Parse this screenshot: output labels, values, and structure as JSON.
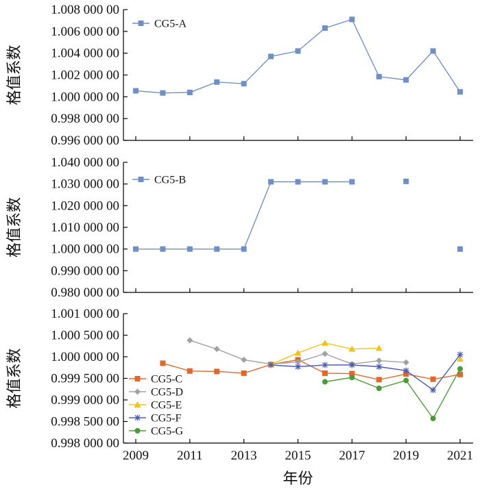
{
  "chart_data": [
    {
      "type": "line",
      "panel": "top",
      "ylabel": "格值系数",
      "ylim": [
        0.996,
        1.008
      ],
      "yticks": [
        0.996,
        0.998,
        1.0,
        1.002,
        1.004,
        1.006,
        1.008
      ],
      "ytick_labels": [
        "0.996 000 00",
        "0.998 000 00",
        "1.000 000 00",
        "1.002 000 00",
        "1.004 000 00",
        "1.006 000 00",
        "1.008 000 00"
      ],
      "legend_position": "top-left",
      "series": [
        {
          "name": "CG5-A",
          "color": "#6e8fc8",
          "marker": "square",
          "x": [
            2009,
            2010,
            2011,
            2012,
            2013,
            2014,
            2015,
            2016,
            2017,
            2018,
            2019,
            2020,
            2021
          ],
          "values": [
            1.00055,
            1.00035,
            1.0004,
            1.00135,
            1.0012,
            1.0037,
            1.0042,
            1.0063,
            1.0071,
            1.00185,
            1.00155,
            1.0042,
            1.00045
          ]
        }
      ]
    },
    {
      "type": "line",
      "panel": "middle",
      "ylabel": "格值系数",
      "ylim": [
        0.98,
        1.04
      ],
      "yticks": [
        0.98,
        0.99,
        1.0,
        1.01,
        1.02,
        1.03,
        1.04
      ],
      "ytick_labels": [
        "0.980 000 00",
        "0.990 000 00",
        "1.000 000 00",
        "1.010 000 00",
        "1.020 000 00",
        "1.030 000 00",
        "1.040 000 00"
      ],
      "legend_position": "top-left",
      "series": [
        {
          "name": "CG5-B",
          "color": "#6e8fc8",
          "marker": "square",
          "x": [
            2009,
            2010,
            2011,
            2012,
            2013,
            2014,
            2015,
            2016,
            2017,
            2019,
            2021
          ],
          "values": [
            1.0,
            1.0,
            1.0,
            1.0,
            1.0,
            1.031,
            1.031,
            1.031,
            1.031,
            1.0312,
            1.0
          ],
          "segments": [
            [
              0,
              8
            ]
          ]
        }
      ]
    },
    {
      "type": "line",
      "panel": "bottom",
      "ylabel": "格值系数",
      "xlabel": "年份",
      "xlim": [
        2009,
        2021
      ],
      "xticks": [
        2009,
        2011,
        2013,
        2015,
        2017,
        2019,
        2021
      ],
      "xtick_labels": [
        "2009",
        "2011",
        "2013",
        "2015",
        "2017",
        "2019",
        "2021"
      ],
      "ylim": [
        0.998,
        1.001
      ],
      "yticks": [
        0.998,
        0.9985,
        0.999,
        0.9995,
        1.0,
        1.0005,
        1.001
      ],
      "ytick_labels": [
        "0.998 000 00",
        "0.998 500 00",
        "0.999 000 00",
        "0.999 500 00",
        "1.000 000 00",
        "1.000 500 00",
        "1.001 000 00"
      ],
      "legend_position": "bottom-left",
      "series": [
        {
          "name": "CG5-C",
          "color": "#e2672b",
          "marker": "square",
          "x": [
            2010,
            2011,
            2012,
            2013,
            2014,
            2015,
            2016,
            2017,
            2018,
            2019,
            2020,
            2021
          ],
          "values": [
            0.99985,
            0.99967,
            0.99966,
            0.99962,
            0.99982,
            0.99993,
            0.99962,
            0.99961,
            0.99947,
            0.9996,
            0.99948,
            0.99959
          ]
        },
        {
          "name": "CG5-D",
          "color": "#a0a0a0",
          "marker": "diamond",
          "x": [
            2011,
            2012,
            2013,
            2014,
            2015,
            2016,
            2017,
            2018,
            2019
          ],
          "values": [
            1.00038,
            1.00018,
            0.99993,
            0.99983,
            0.99988,
            1.00007,
            0.99983,
            0.99991,
            0.99987
          ]
        },
        {
          "name": "CG5-E",
          "color": "#f2c21b",
          "marker": "triangle",
          "x": [
            2014,
            2015,
            2016,
            2017,
            2018,
            2021
          ],
          "values": [
            0.99982,
            1.00009,
            1.00032,
            1.00018,
            1.0002,
            0.99995
          ],
          "segments": [
            [
              0,
              4
            ]
          ]
        },
        {
          "name": "CG5-F",
          "color": "#4a5ab8",
          "marker": "star",
          "x": [
            2014,
            2015,
            2016,
            2017,
            2018,
            2019,
            2020,
            2021
          ],
          "values": [
            0.99981,
            0.99977,
            0.99981,
            0.99981,
            0.99977,
            0.99968,
            0.99923,
            1.00005
          ]
        },
        {
          "name": "CG5-G",
          "color": "#4a9a35",
          "marker": "circle",
          "x": [
            2016,
            2017,
            2018,
            2019,
            2020,
            2021
          ],
          "values": [
            0.99942,
            0.99952,
            0.99927,
            0.99945,
            0.99857,
            0.99972
          ]
        }
      ]
    }
  ]
}
